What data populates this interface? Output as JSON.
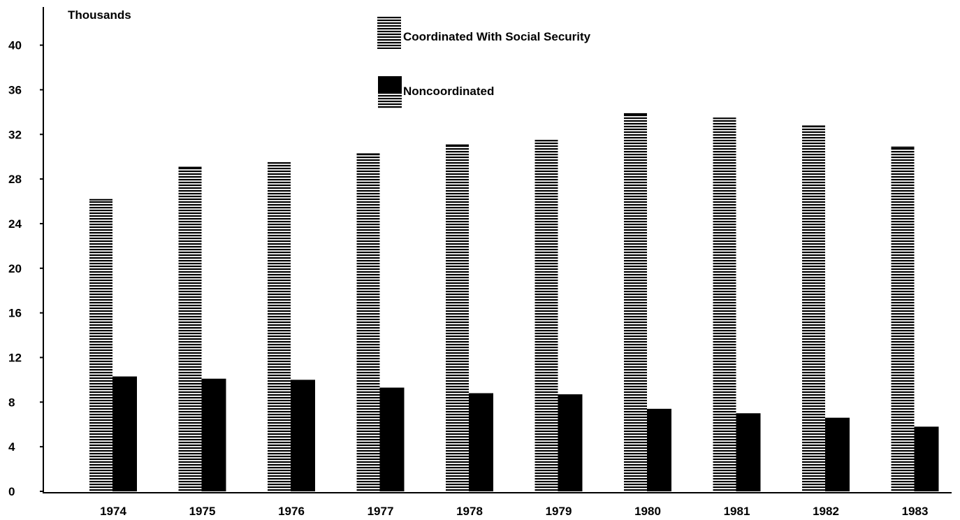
{
  "chart_data": {
    "type": "bar",
    "ylabel": "Thousands",
    "xlabel": "",
    "title": "",
    "categories": [
      "1974",
      "1975",
      "1976",
      "1977",
      "1978",
      "1979",
      "1980",
      "1981",
      "1982",
      "1983"
    ],
    "series": [
      {
        "name": "Coordinated With Social Security",
        "values": [
          26.2,
          29.1,
          29.5,
          30.3,
          31.1,
          31.5,
          33.9,
          33.5,
          32.8,
          30.9
        ],
        "pattern": "horizontal-stripes",
        "color": "#000000"
      },
      {
        "name": "Noncoordinated",
        "values": [
          10.3,
          10.1,
          10.0,
          9.3,
          8.8,
          8.7,
          7.4,
          7.0,
          6.6,
          5.8
        ],
        "pattern": "solid",
        "color": "#000000"
      }
    ],
    "yticks": [
      "0",
      "4",
      "8",
      "12",
      "16",
      "20",
      "24",
      "28",
      "32",
      "36",
      "40"
    ],
    "ylim": [
      0,
      42
    ],
    "grid": false,
    "legend_position": "top-center"
  }
}
